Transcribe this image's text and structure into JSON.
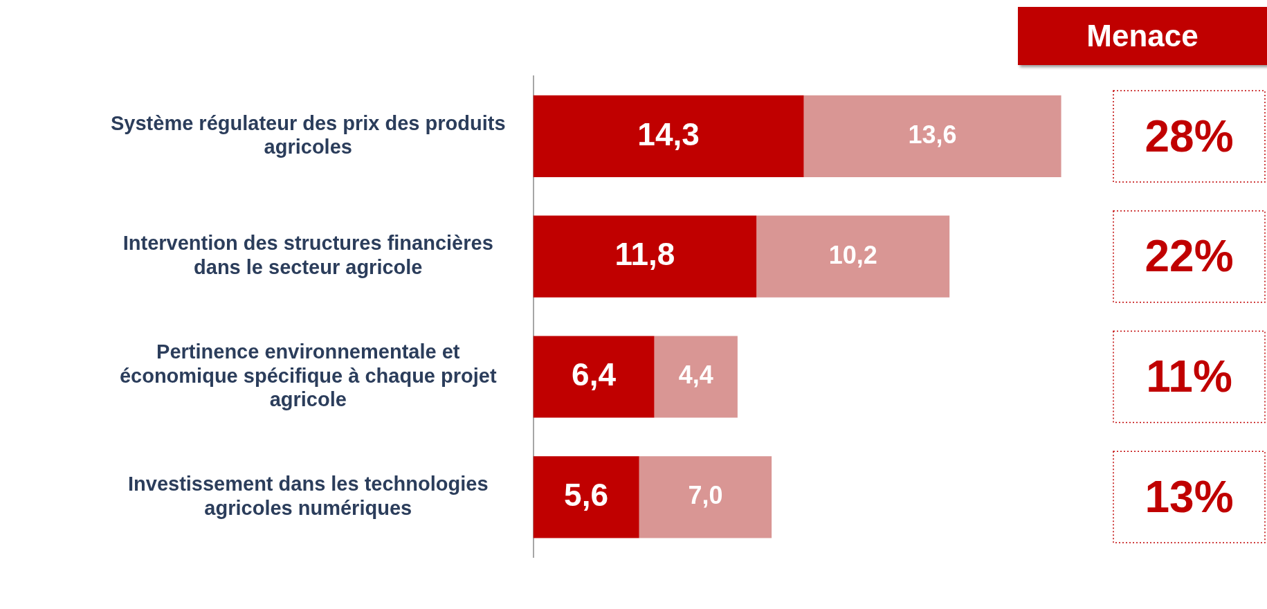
{
  "chart_data": {
    "type": "bar",
    "orientation": "horizontal",
    "stacked": true,
    "tick_labels": "y",
    "grid": false,
    "legend": false,
    "data_labels": true,
    "categories": [
      "Système régulateur des prix des produits agricoles",
      "Intervention des structures financières dans le secteur agricole",
      "Pertinence environnementale et économique spécifique à chaque projet agricole",
      "Investissement dans les technologies agricoles numériques"
    ],
    "series": [
      {
        "color": "#c00000",
        "values": [
          14.3,
          11.8,
          6.4,
          5.6
        ],
        "value_labels": [
          "14,3",
          "11,8",
          "6,4",
          "5,6"
        ]
      },
      {
        "color": "#d99694",
        "values": [
          13.6,
          10.2,
          4.4,
          7.0
        ],
        "value_labels": [
          "13,6",
          "10,2",
          "4,4",
          "7,0"
        ]
      }
    ],
    "annotations": [
      "Menace",
      "28%",
      "22%",
      "11%",
      "13%"
    ]
  }
}
